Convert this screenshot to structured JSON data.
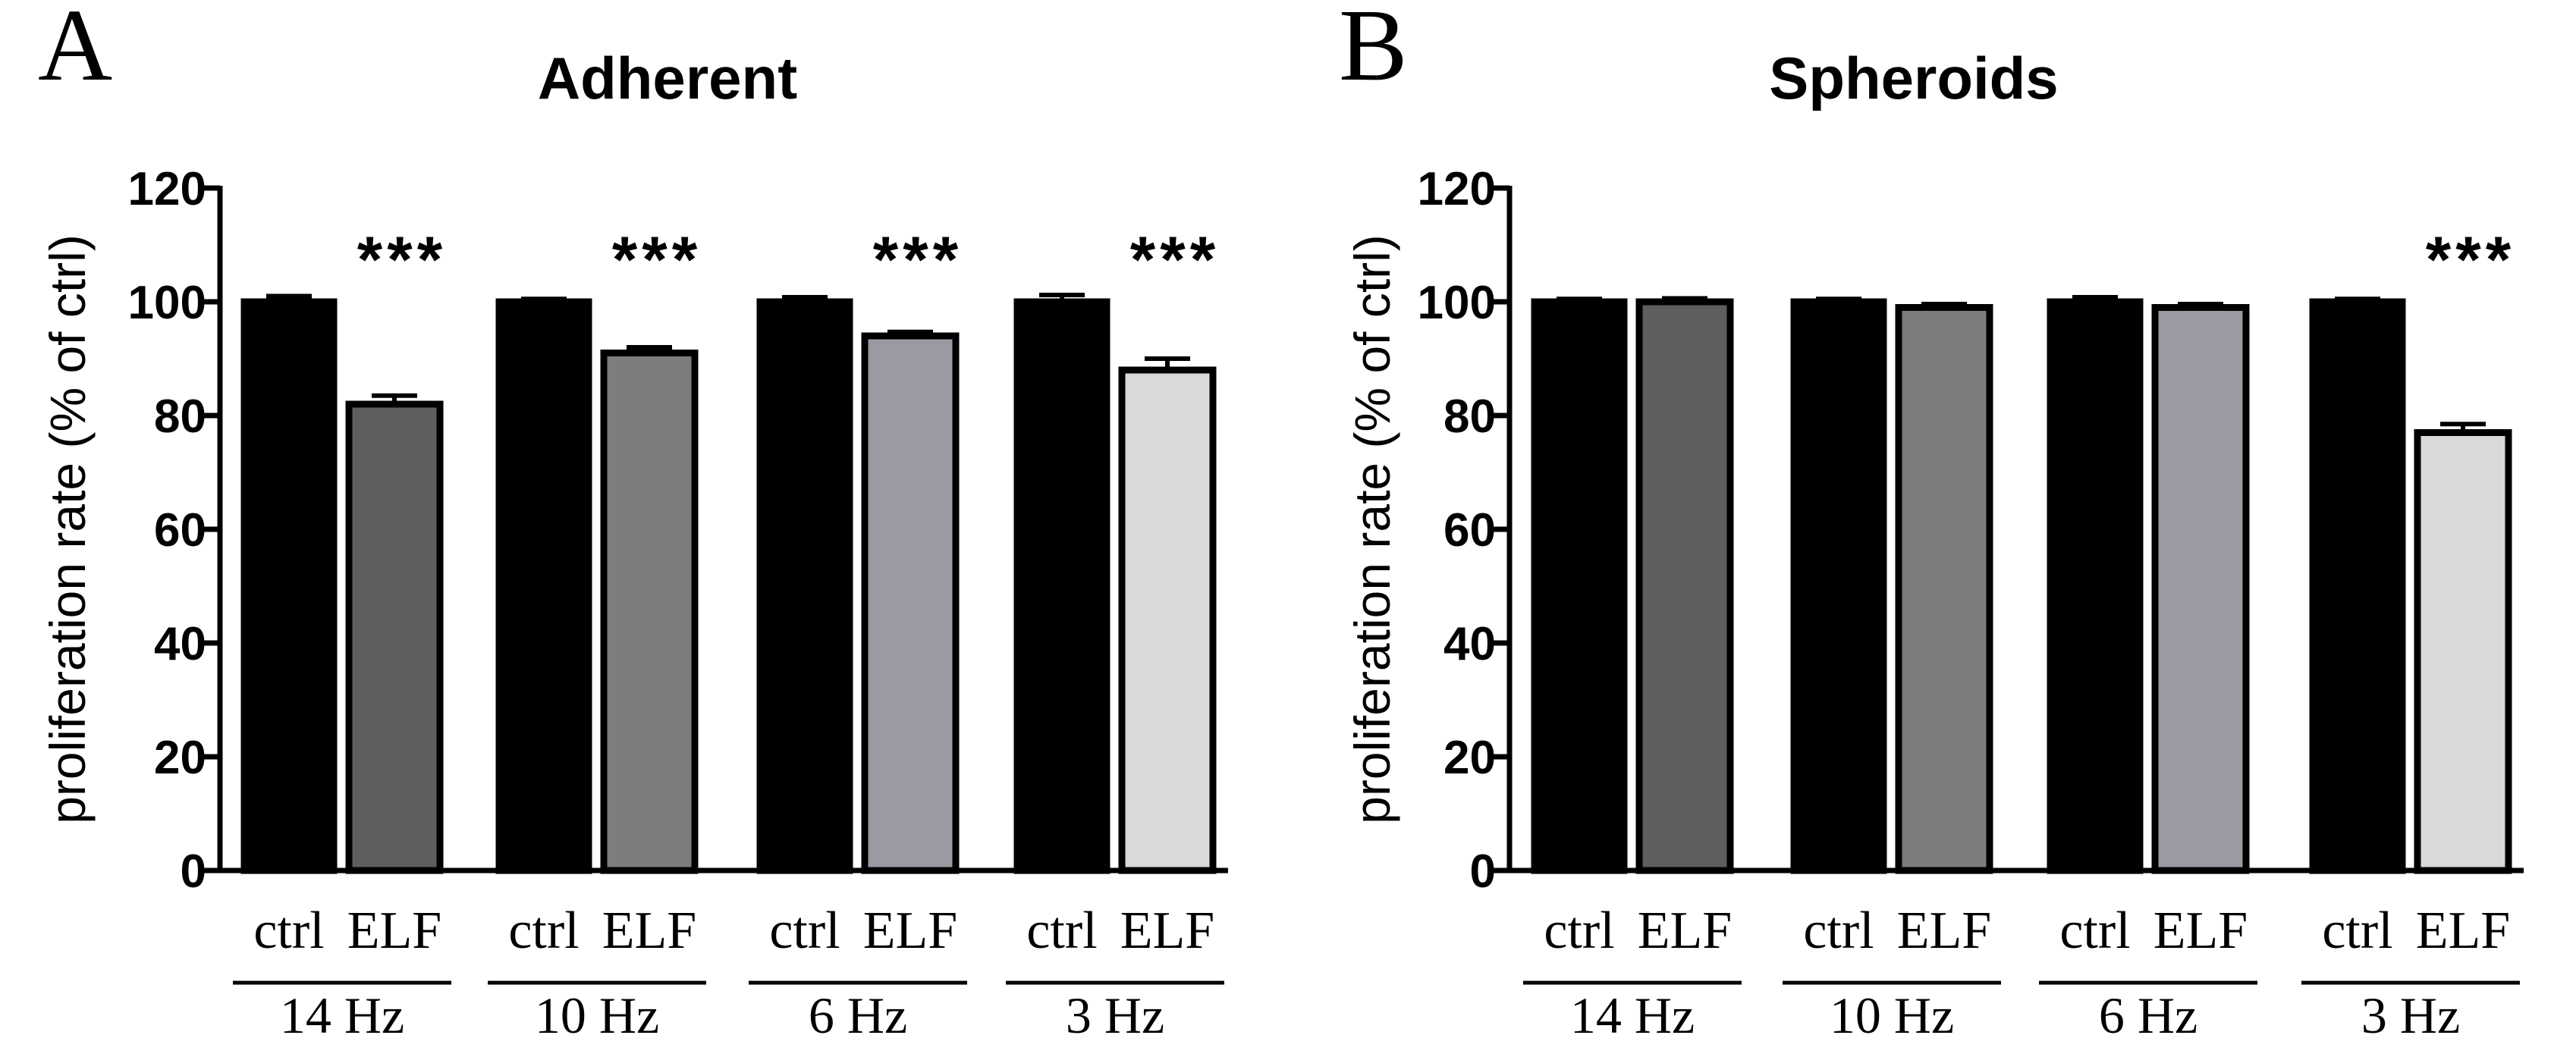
{
  "chart_data": [
    {
      "type": "bar",
      "panel_letter": "A",
      "title": "Adherent",
      "ylabel": "proliferation rate (% of ctrl)",
      "ylim": [
        0,
        120
      ],
      "yticks": [
        0,
        20,
        40,
        60,
        80,
        100,
        120
      ],
      "groups": [
        {
          "label": "14 Hz",
          "bars": [
            {
              "label": "ctrl",
              "value": 100,
              "error": 1,
              "color": "#000000"
            },
            {
              "label": "ELF",
              "value": 82,
              "error": 1.5,
              "color": "#5e5e5e"
            }
          ],
          "significance": "***"
        },
        {
          "label": "10 Hz",
          "bars": [
            {
              "label": "ctrl",
              "value": 100,
              "error": 0.5,
              "color": "#000000"
            },
            {
              "label": "ELF",
              "value": 91,
              "error": 1,
              "color": "#7d7d7d"
            }
          ],
          "significance": "***"
        },
        {
          "label": "6 Hz",
          "bars": [
            {
              "label": "ctrl",
              "value": 100,
              "error": 0.8,
              "color": "#000000"
            },
            {
              "label": "ELF",
              "value": 94,
              "error": 0.7,
              "color": "#9b9aa2"
            }
          ],
          "significance": "***"
        },
        {
          "label": "3 Hz",
          "bars": [
            {
              "label": "ctrl",
              "value": 100,
              "error": 1.2,
              "color": "#000000"
            },
            {
              "label": "ELF",
              "value": 88,
              "error": 2,
              "color": "#d9d9d9"
            }
          ],
          "significance": "***"
        }
      ]
    },
    {
      "type": "bar",
      "panel_letter": "B",
      "title": "Spheroids",
      "ylabel": "proliferation rate (% of ctrl)",
      "ylim": [
        0,
        120
      ],
      "yticks": [
        0,
        20,
        40,
        60,
        80,
        100,
        120
      ],
      "groups": [
        {
          "label": "14 Hz",
          "bars": [
            {
              "label": "ctrl",
              "value": 100,
              "error": 0.5,
              "color": "#000000"
            },
            {
              "label": "ELF",
              "value": 100,
              "error": 0.6,
              "color": "#5e5e5e"
            }
          ],
          "significance": ""
        },
        {
          "label": "10 Hz",
          "bars": [
            {
              "label": "ctrl",
              "value": 100,
              "error": 0.5,
              "color": "#000000"
            },
            {
              "label": "ELF",
              "value": 99,
              "error": 0.6,
              "color": "#7d7d7d"
            }
          ],
          "significance": ""
        },
        {
          "label": "6 Hz",
          "bars": [
            {
              "label": "ctrl",
              "value": 100,
              "error": 0.8,
              "color": "#000000"
            },
            {
              "label": "ELF",
              "value": 99,
              "error": 0.6,
              "color": "#9b9aa2"
            }
          ],
          "significance": ""
        },
        {
          "label": "3 Hz",
          "bars": [
            {
              "label": "ctrl",
              "value": 100,
              "error": 0.5,
              "color": "#000000"
            },
            {
              "label": "ELF",
              "value": 77,
              "error": 1.5,
              "color": "#d9d9d9"
            }
          ],
          "significance": "***"
        }
      ]
    }
  ]
}
